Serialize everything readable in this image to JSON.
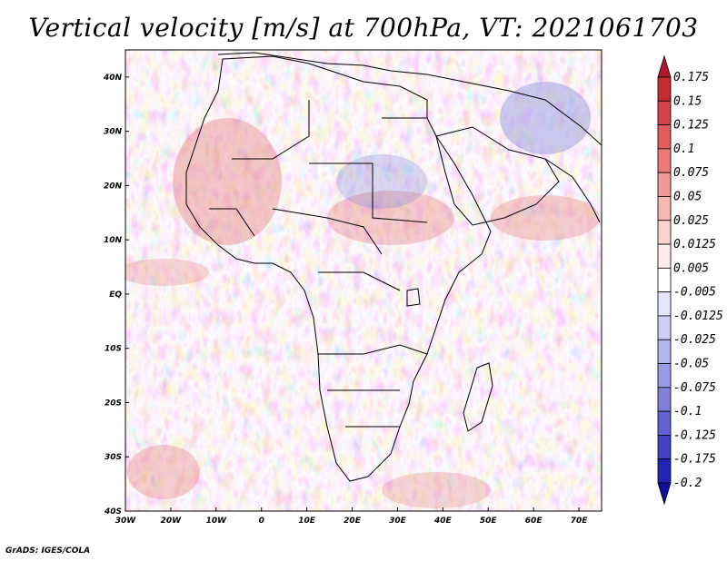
{
  "title": "Vertical velocity [m/s] at 700hPa, VT: 2021061703",
  "footer": "GrADS: IGES/COLA",
  "map": {
    "lon_ticks": [
      "30W",
      "20W",
      "10W",
      "0",
      "10E",
      "20E",
      "30E",
      "40E",
      "50E",
      "60E",
      "70E"
    ],
    "lat_ticks": [
      "40N",
      "30N",
      "20N",
      "10N",
      "EQ",
      "10S",
      "20S",
      "30S",
      "40S"
    ],
    "lon_range": [
      -30,
      75
    ],
    "lat_range": [
      -40,
      45
    ]
  },
  "colorbar": {
    "labels": [
      "0.175",
      "0.15",
      "0.125",
      "0.1",
      "0.075",
      "0.05",
      "0.025",
      "0.0125",
      "0.005",
      "-0.005",
      "-0.0125",
      "-0.025",
      "-0.05",
      "-0.075",
      "-0.1",
      "-0.125",
      "-0.175",
      "-0.2"
    ],
    "colors": [
      "#b2182b",
      "#c62a35",
      "#d6414a",
      "#e25c5f",
      "#ec7a78",
      "#f39a96",
      "#f7b8b3",
      "#fad3cf",
      "#fdeceb",
      "#ffffff",
      "#e6e6fb",
      "#cfcff5",
      "#b6b6ee",
      "#9c9ce6",
      "#8080dd",
      "#6262d2",
      "#4242c4",
      "#2424b4",
      "#10109c"
    ]
  }
}
